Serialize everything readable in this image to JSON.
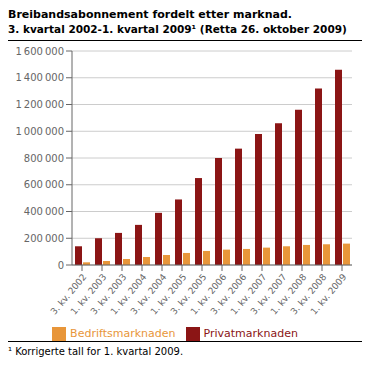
{
  "chart_data": {
    "type": "bar",
    "title": "Breibandsabonnement fordelt etter marknad.",
    "subtitle": "3. kvartal 2002-1. kvartal 2009¹ (Retta 26. oktober 2009)",
    "annotations": [
      "¹ Korrigerte tall for 1. kvartal 2009."
    ],
    "categories": [
      "3. kv. 2002",
      "1. kv. 2003",
      "3. kv. 2003",
      "1. kv. 2004",
      "3. kv. 2004",
      "1. kv. 2005",
      "3. kv. 2005",
      "1. kv. 2006",
      "3. kv. 2006",
      "1. kv. 2007",
      "3. kv. 2007",
      "1. kv. 2008",
      "3. kv. 2008",
      "1. kv. 2009"
    ],
    "series": [
      {
        "name": "Privatmarknaden",
        "color": "#8B1515",
        "values": [
          140000,
          200000,
          240000,
          300000,
          390000,
          490000,
          650000,
          800000,
          870000,
          980000,
          1060000,
          1160000,
          1320000,
          1460000
        ]
      },
      {
        "name": "Bedriftsmarknaden",
        "color": "#E8963A",
        "values": [
          20000,
          30000,
          45000,
          60000,
          75000,
          90000,
          105000,
          115000,
          120000,
          130000,
          140000,
          150000,
          155000,
          160000
        ]
      }
    ],
    "ylim": [
      0,
      1600000
    ],
    "yticks": [
      0,
      {
        "value": 200000,
        "label": "200 000"
      },
      {
        "value": 400000,
        "label": "400 000"
      },
      {
        "value": 600000,
        "label": "600 000"
      },
      {
        "value": 800000,
        "label": "800 000"
      },
      {
        "value": 1000000,
        "label": "1 000 000"
      },
      {
        "value": 1200000,
        "label": "1 200 000"
      },
      {
        "value": 1400000,
        "label": "1 400 000"
      },
      {
        "value": 1600000,
        "label": "1 600 000"
      }
    ],
    "grid": true,
    "legend": "bottom"
  }
}
